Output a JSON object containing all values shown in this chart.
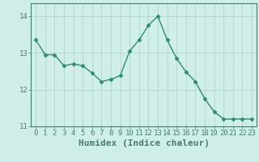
{
  "x": [
    0,
    1,
    2,
    3,
    4,
    5,
    6,
    7,
    8,
    9,
    10,
    11,
    12,
    13,
    14,
    15,
    16,
    17,
    18,
    19,
    20,
    21,
    22,
    23
  ],
  "y": [
    13.35,
    12.95,
    12.95,
    12.65,
    12.7,
    12.65,
    12.45,
    12.22,
    12.28,
    12.38,
    13.05,
    13.35,
    13.75,
    14.0,
    13.35,
    12.85,
    12.48,
    12.22,
    11.75,
    11.4,
    11.2,
    11.2,
    11.2,
    11.2
  ],
  "line_color": "#2e8b74",
  "marker": "D",
  "marker_size": 2.5,
  "background_color": "#d0eeea",
  "grid_color": "#b8d8d4",
  "axis_color": "#4a7a74",
  "xlabel": "Humidex (Indice chaleur)",
  "xlabel_fontsize": 8,
  "ylim": [
    11.0,
    14.35
  ],
  "xlim": [
    -0.5,
    23.5
  ],
  "yticks": [
    11,
    12,
    13,
    14
  ],
  "xticks": [
    0,
    1,
    2,
    3,
    4,
    5,
    6,
    7,
    8,
    9,
    10,
    11,
    12,
    13,
    14,
    15,
    16,
    17,
    18,
    19,
    20,
    21,
    22,
    23
  ],
  "tick_fontsize": 6.5
}
